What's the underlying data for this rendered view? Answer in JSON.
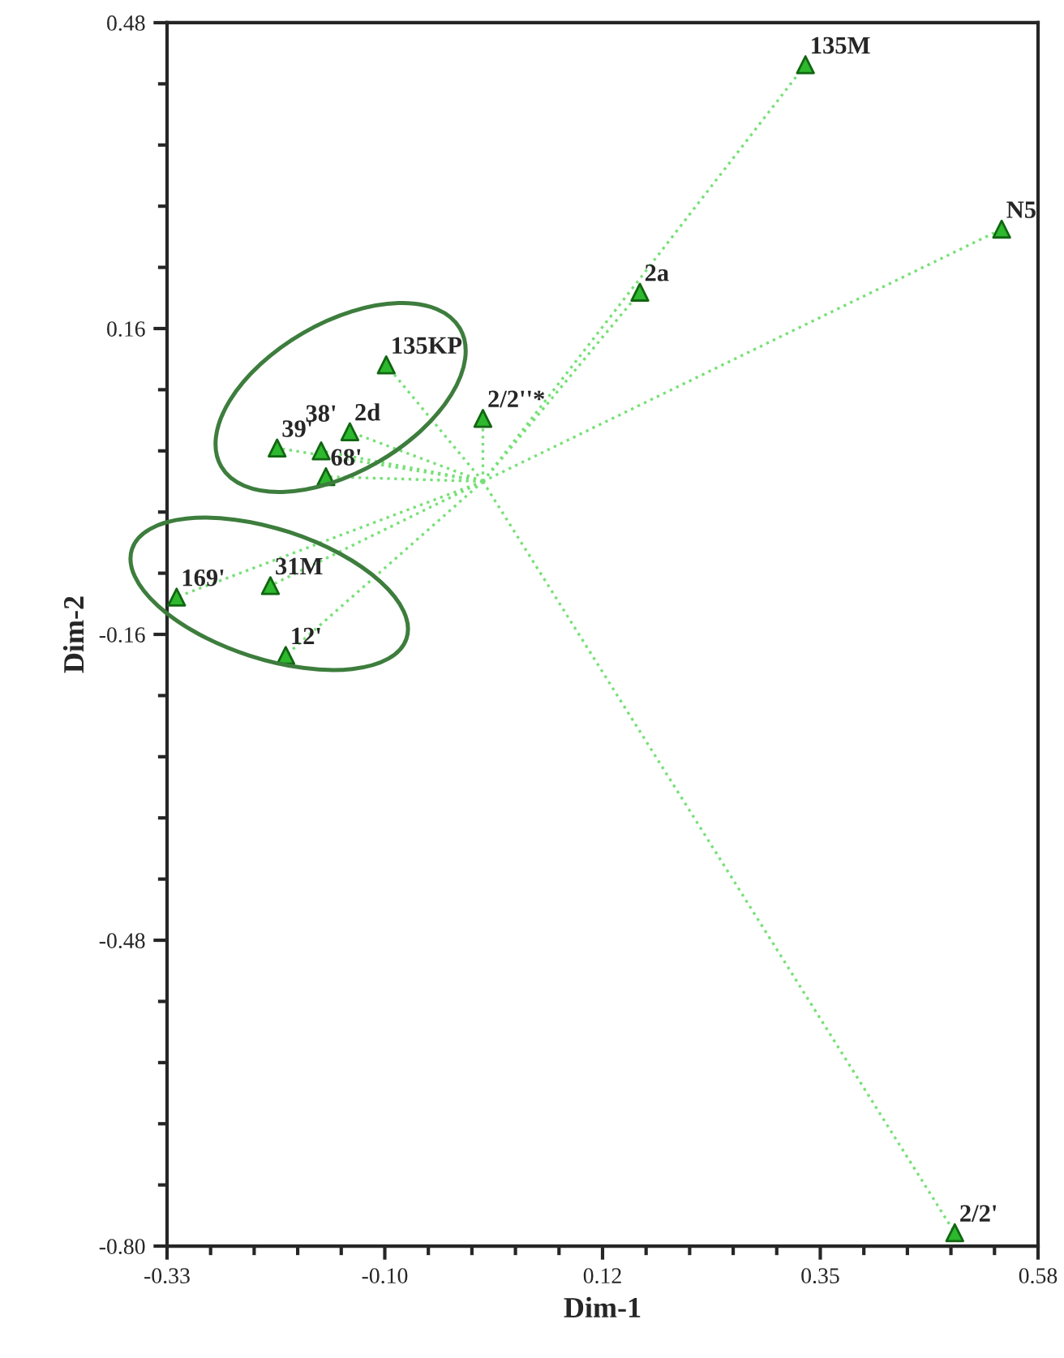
{
  "chart_data": {
    "type": "scatter",
    "xlabel": "Dim-1",
    "ylabel": "Dim-2",
    "grid": false,
    "xlim": [
      -0.33,
      0.58
    ],
    "ylim": [
      -0.8,
      0.48
    ],
    "xticks": [
      {
        "value": -0.33,
        "label": "-0.33"
      },
      {
        "value": -0.2845,
        "label": null
      },
      {
        "value": -0.239,
        "label": null
      },
      {
        "value": -0.1935,
        "label": null
      },
      {
        "value": -0.148,
        "label": null
      },
      {
        "value": -0.1025,
        "label": "-0.10"
      },
      {
        "value": -0.057,
        "label": null
      },
      {
        "value": -0.0115,
        "label": null
      },
      {
        "value": 0.034,
        "label": null
      },
      {
        "value": 0.0795,
        "label": null
      },
      {
        "value": 0.125,
        "label": "0.12"
      },
      {
        "value": 0.1705,
        "label": null
      },
      {
        "value": 0.216,
        "label": null
      },
      {
        "value": 0.2615,
        "label": null
      },
      {
        "value": 0.307,
        "label": null
      },
      {
        "value": 0.3525,
        "label": "0.35"
      },
      {
        "value": 0.398,
        "label": null
      },
      {
        "value": 0.4435,
        "label": null
      },
      {
        "value": 0.489,
        "label": null
      },
      {
        "value": 0.5345,
        "label": null
      },
      {
        "value": 0.58,
        "label": "0.58"
      }
    ],
    "yticks": [
      {
        "value": 0.48,
        "label": "0.48"
      },
      {
        "value": 0.416,
        "label": null
      },
      {
        "value": 0.352,
        "label": null
      },
      {
        "value": 0.288,
        "label": null
      },
      {
        "value": 0.224,
        "label": null
      },
      {
        "value": 0.16,
        "label": "0.16"
      },
      {
        "value": 0.096,
        "label": null
      },
      {
        "value": 0.032,
        "label": null
      },
      {
        "value": -0.032,
        "label": null
      },
      {
        "value": -0.096,
        "label": null
      },
      {
        "value": -0.16,
        "label": "-0.16"
      },
      {
        "value": -0.224,
        "label": null
      },
      {
        "value": -0.288,
        "label": null
      },
      {
        "value": -0.352,
        "label": null
      },
      {
        "value": -0.416,
        "label": null
      },
      {
        "value": -0.48,
        "label": "-0.48"
      },
      {
        "value": -0.544,
        "label": null
      },
      {
        "value": -0.608,
        "label": null
      },
      {
        "value": -0.672,
        "label": null
      },
      {
        "value": -0.736,
        "label": null
      },
      {
        "value": -0.8,
        "label": "-0.80"
      }
    ],
    "series": [
      {
        "type": "line",
        "color": "#77e077",
        "line_style": "dotted",
        "x": [
          0,
          0.337,
          null,
          0,
          0.542,
          null,
          0,
          0.164,
          null,
          0,
          -0.101,
          null,
          0,
          0.0,
          null,
          0,
          -0.215,
          null,
          0,
          -0.169,
          null,
          0,
          -0.139,
          null,
          0,
          -0.164,
          null,
          0,
          -0.32,
          null,
          0,
          -0.222,
          null,
          0,
          -0.206,
          null,
          0,
          0.493
        ],
        "values": [
          0,
          0.436,
          null,
          0,
          0.264,
          null,
          0,
          0.198,
          null,
          0,
          0.122,
          null,
          0,
          0.066,
          null,
          0,
          0.035,
          null,
          0,
          0.032,
          null,
          0,
          0.052,
          null,
          0,
          0.005,
          null,
          0,
          -0.121,
          null,
          0,
          -0.109,
          null,
          0,
          -0.182,
          null,
          0,
          -0.786
        ]
      },
      {
        "color": "#2db82d",
        "marker": "triangle",
        "x": [
          0.337,
          0.542,
          0.164,
          -0.101,
          0.0,
          -0.215,
          -0.169,
          -0.139,
          -0.164,
          -0.32,
          -0.222,
          -0.206,
          0.493
        ],
        "values": [
          0.436,
          0.264,
          0.198,
          0.122,
          0.066,
          0.035,
          0.032,
          0.052,
          0.005,
          -0.121,
          -0.109,
          -0.182,
          -0.786
        ]
      }
    ],
    "annotations": [
      {
        "text": "135M",
        "x": 0.337,
        "y": 0.436
      },
      {
        "text": "N5",
        "x": 0.542,
        "y": 0.264
      },
      {
        "text": "2a",
        "x": 0.164,
        "y": 0.198
      },
      {
        "text": "135KP",
        "x": -0.101,
        "y": 0.122
      },
      {
        "text": "2/2''*",
        "x": 0.0,
        "y": 0.066
      },
      {
        "text": "39'",
        "x": -0.215,
        "y": 0.035
      },
      {
        "text": "38'",
        "x": -0.169,
        "y": 0.032
      },
      {
        "text": "2d",
        "x": -0.139,
        "y": 0.052
      },
      {
        "text": "68'",
        "x": -0.164,
        "y": 0.005
      },
      {
        "text": "169'",
        "x": -0.32,
        "y": -0.121
      },
      {
        "text": "31M",
        "x": -0.222,
        "y": -0.109
      },
      {
        "text": "12'",
        "x": -0.206,
        "y": -0.182
      },
      {
        "text": "2/2'",
        "x": 0.493,
        "y": -0.786
      }
    ]
  }
}
